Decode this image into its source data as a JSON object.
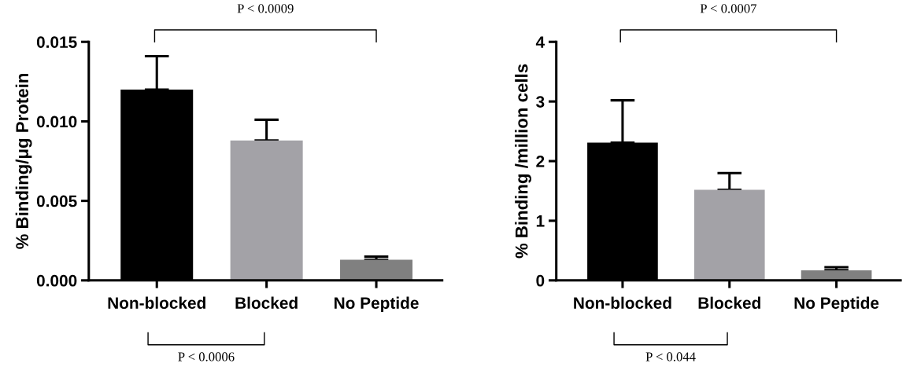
{
  "chart_data": [
    {
      "type": "bar",
      "ylabel": "% Binding/μg Protein",
      "categories": [
        "Non-blocked",
        "Blocked",
        "No Peptide"
      ],
      "values": [
        0.012,
        0.0088,
        0.0013
      ],
      "colors": [
        "#000000",
        "#a3a2a7",
        "#808080"
      ],
      "errors": [
        [
          0.012,
          0.0141
        ],
        [
          0.0088,
          0.0101
        ],
        [
          0.0013,
          0.0015
        ]
      ],
      "ylim": [
        0,
        0.015
      ],
      "yticks": [
        {
          "value": 0,
          "label": "0.000"
        },
        {
          "value": 0.005,
          "label": "0.005"
        },
        {
          "value": 0.01,
          "label": "0.010"
        },
        {
          "value": 0.015,
          "label": "0.015"
        }
      ],
      "grid": false,
      "legend": false,
      "annotations": [
        "P < 0.0009",
        "P < 0.0006"
      ]
    },
    {
      "type": "bar",
      "ylabel": "% Binding /million cells",
      "categories": [
        "Non-blocked",
        "Blocked",
        "No Peptide"
      ],
      "values": [
        2.31,
        1.52,
        0.17
      ],
      "colors": [
        "#000000",
        "#a3a2a7",
        "#808080"
      ],
      "errors": [
        [
          2.31,
          3.02
        ],
        [
          1.52,
          1.8
        ],
        [
          0.17,
          0.22
        ]
      ],
      "ylim": [
        0,
        4
      ],
      "yticks": [
        0,
        1,
        2,
        3,
        4
      ],
      "grid": false,
      "legend": false,
      "annotations": [
        "P < 0.0007",
        "P < 0.044"
      ]
    }
  ]
}
